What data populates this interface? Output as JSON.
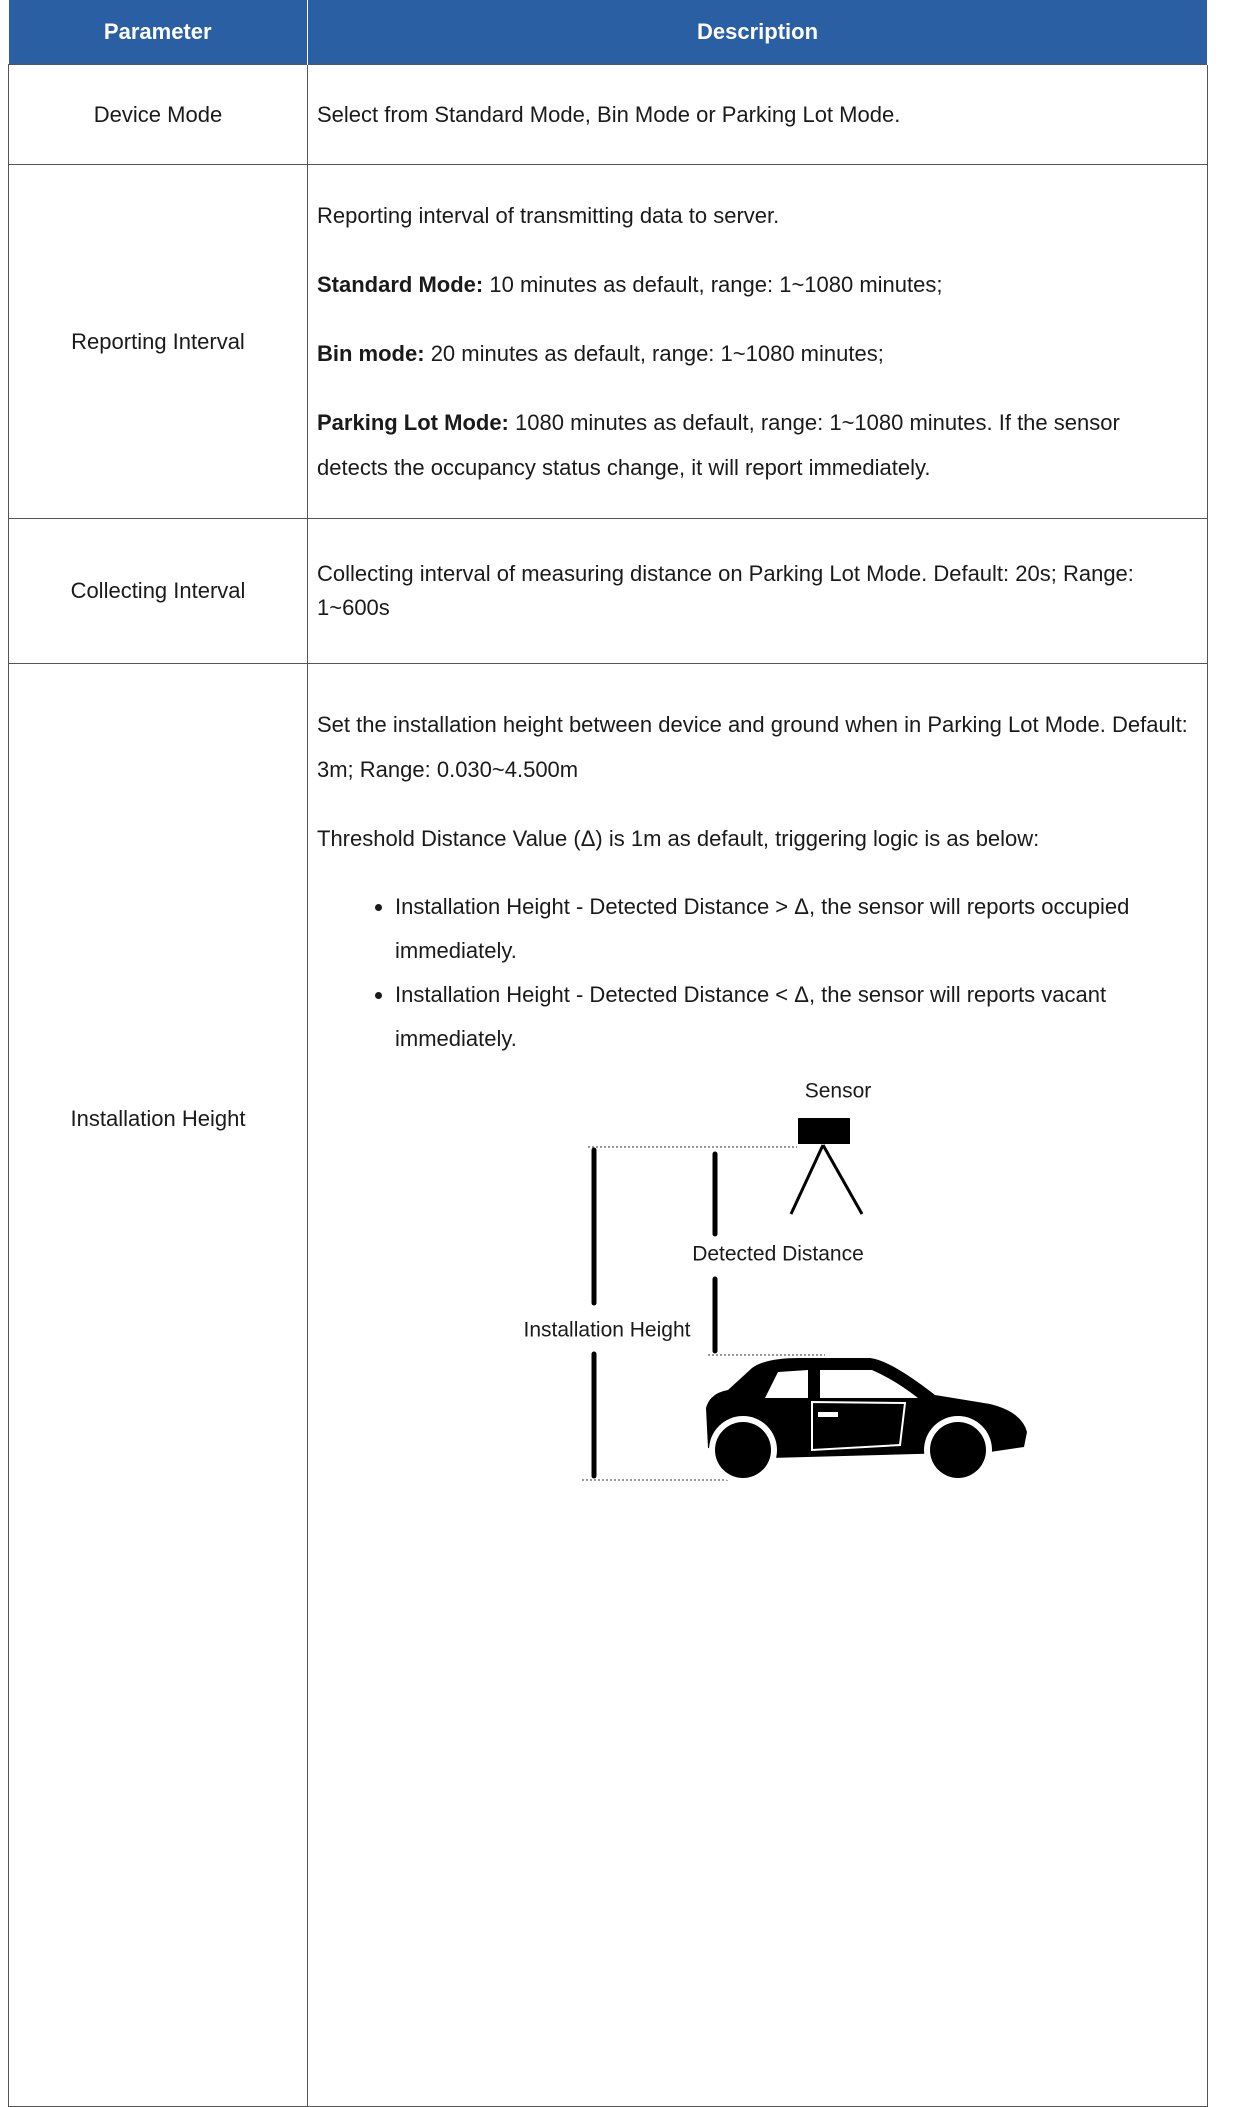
{
  "table": {
    "header": [
      "Parameter",
      "Description"
    ],
    "rows": [
      {
        "parameter": "Device Mode",
        "description": [
          {
            "text": "Select from Standard Mode, Bin Mode or Parking Lot Mode."
          }
        ]
      },
      {
        "parameter": "Reporting Interval",
        "description": [
          {
            "text": "Reporting interval of transmitting data to server."
          },
          {
            "bold": "Standard Mode:",
            "text": "10 minutes as default, range: 1~1080 minutes;"
          },
          {
            "bold": "Bin mode:",
            "text": "20 minutes as default, range: 1~1080 minutes;"
          },
          {
            "bold": "Parking Lot Mode:",
            "text": "1080 minutes as default, range: 1~1080 minutes. If the sensor detects the occupancy status change, it will report immediately."
          }
        ]
      },
      {
        "parameter": "Collecting Interval",
        "description": [
          {
            "text": "Collecting interval of measuring distance on Parking Lot Mode. Default: 20s; Range: 1~600s"
          }
        ]
      },
      {
        "parameter": "Installation Height",
        "description": [
          {
            "text": "Set the installation height between device and ground when in Parking Lot Mode. Default: 3m; Range: 0.030~4.500m"
          },
          {
            "text": "Threshold Distance Value (Δ) is 1m as default, triggering logic is as below:"
          }
        ],
        "bullets": [
          "Installation Height - Detected Distance > Δ, the sensor will reports occupied immediately.",
          "Installation Height - Detected Distance < Δ, the sensor will reports vacant immediately."
        ]
      }
    ]
  },
  "diagram": {
    "sensor": "Sensor",
    "detected_distance": "Detected Distance",
    "installation_height": "Installation Height"
  }
}
